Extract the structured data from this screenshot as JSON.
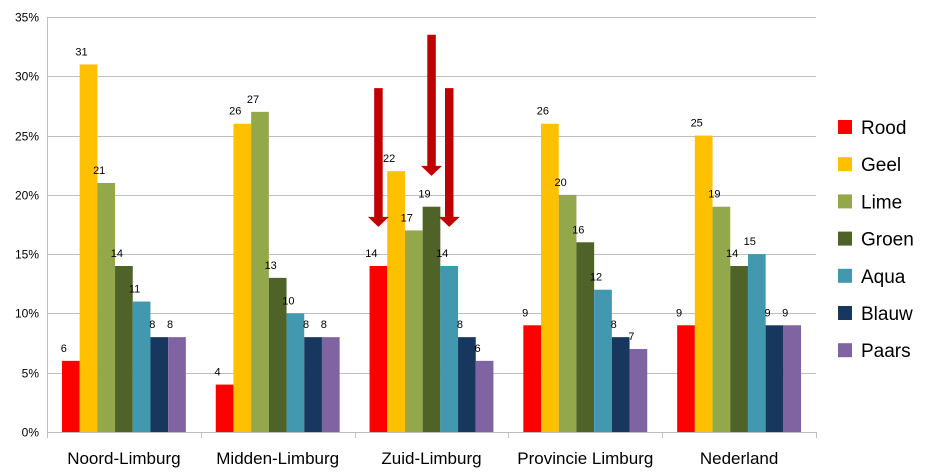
{
  "chart_data": {
    "type": "bar",
    "categories": [
      "Noord-Limburg",
      "Midden-Limburg",
      "Zuid-Limburg",
      "Provincie Limburg",
      "Nederland"
    ],
    "series": [
      {
        "name": "Rood",
        "color": "#ff0000",
        "values": [
          6,
          4,
          14,
          9,
          9
        ]
      },
      {
        "name": "Geel",
        "color": "#ffc000",
        "values": [
          31,
          26,
          22,
          26,
          25
        ]
      },
      {
        "name": "Lime",
        "color": "#92a84a",
        "values": [
          21,
          27,
          17,
          20,
          19
        ]
      },
      {
        "name": "Groen",
        "color": "#4f6228",
        "values": [
          14,
          13,
          19,
          16,
          14
        ]
      },
      {
        "name": "Aqua",
        "color": "#4198af",
        "values": [
          11,
          10,
          14,
          12,
          15
        ]
      },
      {
        "name": "Blauw",
        "color": "#17375e",
        "values": [
          8,
          8,
          8,
          8,
          9
        ]
      },
      {
        "name": "Paars",
        "color": "#8064a2",
        "values": [
          8,
          8,
          6,
          7,
          9
        ]
      }
    ],
    "ylim": [
      0,
      35
    ],
    "yticks": [
      0,
      5,
      10,
      15,
      20,
      25,
      30,
      35
    ],
    "ytick_labels": [
      "0%",
      "5%",
      "10%",
      "15%",
      "20%",
      "25%",
      "30%",
      "35%"
    ],
    "grid": true,
    "legend_position": "right",
    "annotations": [
      {
        "type": "down-arrow",
        "color": "#c00000",
        "category": "Zuid-Limburg",
        "series": "Rood",
        "from": 29,
        "to": 17.3
      },
      {
        "type": "down-arrow",
        "color": "#c00000",
        "category": "Zuid-Limburg",
        "series": "Groen",
        "from": 33.5,
        "to": 21.6
      },
      {
        "type": "down-arrow",
        "color": "#c00000",
        "category": "Zuid-Limburg",
        "series": "Aqua",
        "from": 29,
        "to": 17.3
      }
    ]
  }
}
